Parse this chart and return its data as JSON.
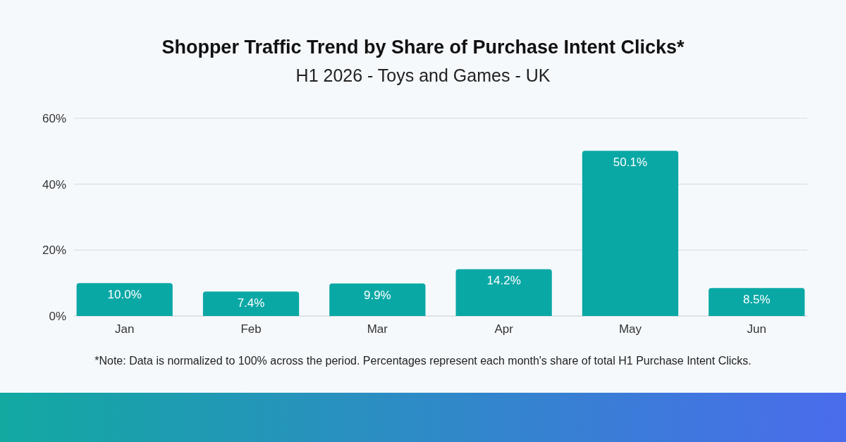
{
  "chart_data": {
    "type": "bar",
    "title": "Shopper Traffic Trend by Share of Purchase Intent Clicks*",
    "subtitle": "H1 2026 - Toys and Games - UK",
    "categories": [
      "Jan",
      "Feb",
      "Mar",
      "Apr",
      "May",
      "Jun"
    ],
    "values": [
      10.0,
      7.4,
      9.9,
      14.2,
      50.1,
      8.5
    ],
    "value_labels": [
      "10.0%",
      "7.4%",
      "9.9%",
      "14.2%",
      "50.1%",
      "8.5%"
    ],
    "color": "#0aa8a5",
    "ylim": [
      0,
      60
    ],
    "yticks": [
      {
        "value": 0,
        "label": "0%"
      },
      {
        "value": 20,
        "label": "20%"
      },
      {
        "value": 40,
        "label": "40%"
      },
      {
        "value": 60,
        "label": "60%"
      }
    ],
    "grid": "y",
    "annotations": [
      "*Note: Data is normalized to 100% across the period. Percentages represent each month's share of total H1 Purchase Intent Clicks."
    ]
  }
}
